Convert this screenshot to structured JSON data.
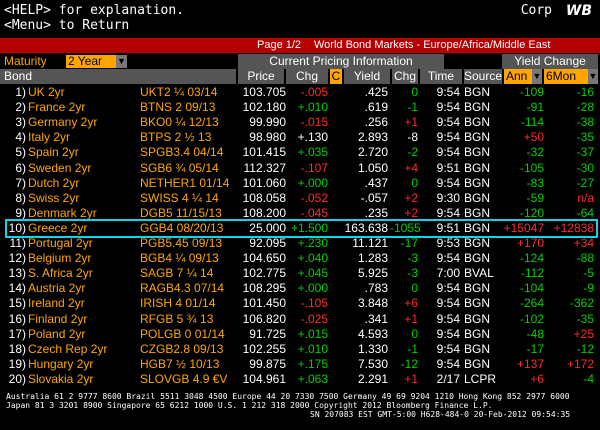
{
  "top": {
    "help_key": "<HELP>",
    "help_text": "for explanation.",
    "menu_line": "<Menu> to Return",
    "corp": "Corp",
    "logo": "WB"
  },
  "titlebar": {
    "page": "Page 1/2",
    "title": "World Bond Markets - Europe/Africa/Middle East"
  },
  "controls": {
    "maturity_label": "Maturity",
    "maturity_value": "2 Year",
    "current_pricing": "Current Pricing Information",
    "yield_change": "Yield Change"
  },
  "columns": {
    "bond": "Bond",
    "price": "Price",
    "chg": "Chg",
    "c": "C",
    "yield": "Yield",
    "ychg": "Chg",
    "time": "Time",
    "source": "Source",
    "ann": "Ann",
    "sixmon": "6Mon"
  },
  "rows": [
    {
      "num": "1)",
      "name": "UK 2yr",
      "ticker": "UKT2 ¼ 03/14",
      "price": "103.705",
      "chg": "-.005",
      "chg_dir": "dn",
      "yield": ".425",
      "ychg": "0",
      "ychg_dir": "up",
      "time": "9:54",
      "source": "BGN",
      "ann": "-109",
      "ann_dir": "up",
      "six": "-16",
      "six_dir": "up"
    },
    {
      "num": "2)",
      "name": "France 2yr",
      "ticker": "BTNS 2 09/13",
      "price": "102.180",
      "chg": "+.010",
      "chg_dir": "up",
      "yield": ".619",
      "ychg": "-1",
      "ychg_dir": "up",
      "time": "9:54",
      "source": "BGN",
      "ann": "-91",
      "ann_dir": "up",
      "six": "-28",
      "six_dir": "up"
    },
    {
      "num": "3)",
      "name": "Germany 2yr",
      "ticker": "BKO0 ¼ 12/13",
      "price": "99.990",
      "chg": "-.015",
      "chg_dir": "dn",
      "yield": ".256",
      "ychg": "+1",
      "ychg_dir": "dn",
      "time": "9:54",
      "source": "BGN",
      "ann": "-114",
      "ann_dir": "up",
      "six": "-38",
      "six_dir": "up"
    },
    {
      "num": "4)",
      "name": "Italy 2yr",
      "ticker": "BTPS 2 ½ 13",
      "price": "98.980",
      "chg": "+.130",
      "chg_dir": "wh",
      "yield": "2.893",
      "ychg": "-8",
      "ychg_dir": "wh",
      "time": "9:54",
      "source": "BGN",
      "ann": "+50",
      "ann_dir": "dn",
      "six": "-35",
      "six_dir": "up"
    },
    {
      "num": "5)",
      "name": "Spain 2yr",
      "ticker": "SPGB3.4 04/14",
      "price": "101.415",
      "chg": "+.035",
      "chg_dir": "up",
      "yield": "2.720",
      "ychg": "-2",
      "ychg_dir": "up",
      "time": "9:54",
      "source": "BGN",
      "ann": "-32",
      "ann_dir": "up",
      "six": "-37",
      "six_dir": "up"
    },
    {
      "num": "6)",
      "name": "Sweden 2yr",
      "ticker": "SGB6 ¾ 05/14",
      "price": "112.327",
      "chg": "-.107",
      "chg_dir": "dn",
      "yield": "1.050",
      "ychg": "+4",
      "ychg_dir": "dn",
      "time": "9:51",
      "source": "BGN",
      "ann": "-105",
      "ann_dir": "up",
      "six": "-30",
      "six_dir": "up"
    },
    {
      "num": "7)",
      "name": "Dutch 2yr",
      "ticker": "NETHER1 01/14",
      "price": "101.060",
      "chg": "+.000",
      "chg_dir": "up",
      "yield": ".437",
      "ychg": "0",
      "ychg_dir": "up",
      "time": "9:54",
      "source": "BGN",
      "ann": "-83",
      "ann_dir": "up",
      "six": "-27",
      "six_dir": "up"
    },
    {
      "num": "8)",
      "name": "Swiss 2yr",
      "ticker": "SWISS 4 ¼ 14",
      "price": "108.058",
      "chg": "-.052",
      "chg_dir": "dn",
      "yield": "-.057",
      "ychg": "+2",
      "ychg_dir": "dn",
      "time": "9:30",
      "source": "BGN",
      "ann": "-59",
      "ann_dir": "up",
      "six": "n/a",
      "six_dir": "dn"
    },
    {
      "num": "9)",
      "name": "Denmark 2yr",
      "ticker": "DGB5 11/15/13",
      "price": "108.200",
      "chg": "-.045",
      "chg_dir": "dn",
      "yield": ".235",
      "ychg": "+2",
      "ychg_dir": "dn",
      "time": "9:54",
      "source": "BGN",
      "ann": "-120",
      "ann_dir": "up",
      "six": "-64",
      "six_dir": "up"
    },
    {
      "num": "10)",
      "name": "Greece 2yr",
      "ticker": "GGB4 08/20/13",
      "price": "25.000",
      "chg": "+1.500",
      "chg_dir": "up",
      "yield": "163.638",
      "ychg": "-1055",
      "ychg_dir": "up",
      "time": "9:51",
      "source": "BGN",
      "ann": "+15047",
      "ann_dir": "dn",
      "six": "+12838",
      "six_dir": "dn"
    },
    {
      "num": "11)",
      "name": "Portugal 2yr",
      "ticker": "PGB5.45 09/13",
      "price": "92.095",
      "chg": "+.230",
      "chg_dir": "up",
      "yield": "11.121",
      "ychg": "-17",
      "ychg_dir": "up",
      "time": "9:53",
      "source": "BGN",
      "ann": "+170",
      "ann_dir": "dn",
      "six": "+34",
      "six_dir": "dn"
    },
    {
      "num": "12)",
      "name": "Belgium 2yr",
      "ticker": "BGB4 ¼ 09/13",
      "price": "104.650",
      "chg": "+.040",
      "chg_dir": "up",
      "yield": "1.283",
      "ychg": "-3",
      "ychg_dir": "up",
      "time": "9:54",
      "source": "BGN",
      "ann": "-124",
      "ann_dir": "up",
      "six": "-88",
      "six_dir": "up"
    },
    {
      "num": "13)",
      "name": "S. Africa 2yr",
      "ticker": "SAGB 7 ¼ 14",
      "price": "102.775",
      "chg": "+.045",
      "chg_dir": "up",
      "yield": "5.925",
      "ychg": "-3",
      "ychg_dir": "up",
      "time": "7:00",
      "source": "BVAL",
      "ann": "-112",
      "ann_dir": "up",
      "six": "-5",
      "six_dir": "up"
    },
    {
      "num": "14)",
      "name": "Austria 2yr",
      "ticker": "RAGB4.3 07/14",
      "price": "108.295",
      "chg": "+.000",
      "chg_dir": "up",
      "yield": ".783",
      "ychg": "0",
      "ychg_dir": "up",
      "time": "9:54",
      "source": "BGN",
      "ann": "-104",
      "ann_dir": "up",
      "six": "-9",
      "six_dir": "up"
    },
    {
      "num": "15)",
      "name": "Ireland 2yr",
      "ticker": "IRISH 4 01/14",
      "price": "101.450",
      "chg": "-.105",
      "chg_dir": "dn",
      "yield": "3.848",
      "ychg": "+6",
      "ychg_dir": "dn",
      "time": "9:54",
      "source": "BGN",
      "ann": "-264",
      "ann_dir": "up",
      "six": "-362",
      "six_dir": "up"
    },
    {
      "num": "16)",
      "name": "Finland 2yr",
      "ticker": "RFGB 5 ¾ 13",
      "price": "106.820",
      "chg": "-.025",
      "chg_dir": "dn",
      "yield": ".341",
      "ychg": "+1",
      "ychg_dir": "dn",
      "time": "9:54",
      "source": "BGN",
      "ann": "-102",
      "ann_dir": "up",
      "six": "-35",
      "six_dir": "up"
    },
    {
      "num": "17)",
      "name": "Poland 2yr",
      "ticker": "POLGB 0 01/14",
      "price": "91.725",
      "chg": "+.015",
      "chg_dir": "up",
      "yield": "4.593",
      "ychg": "0",
      "ychg_dir": "up",
      "time": "9:54",
      "source": "BGN",
      "ann": "-48",
      "ann_dir": "up",
      "six": "+25",
      "six_dir": "dn"
    },
    {
      "num": "18)",
      "name": "Czech Rep 2yr",
      "ticker": "CZGB2.8 09/13",
      "price": "102.255",
      "chg": "+.010",
      "chg_dir": "up",
      "yield": "1.330",
      "ychg": "-1",
      "ychg_dir": "up",
      "time": "9:54",
      "source": "BGN",
      "ann": "-17",
      "ann_dir": "up",
      "six": "-12",
      "six_dir": "up"
    },
    {
      "num": "19)",
      "name": "Hungary 2yr",
      "ticker": "HGB7 ½ 10/13",
      "price": "99.875",
      "chg": "+.175",
      "chg_dir": "up",
      "yield": "7.530",
      "ychg": "-12",
      "ychg_dir": "up",
      "time": "9:54",
      "source": "BGN",
      "ann": "+137",
      "ann_dir": "dn",
      "six": "+172",
      "six_dir": "dn"
    },
    {
      "num": "20)",
      "name": "Slovakia 2yr",
      "ticker": "SLOVGB 4.9 €V",
      "price": "104.961",
      "chg": "+.063",
      "chg_dir": "up",
      "yield": "2.291",
      "ychg": "+1",
      "ychg_dir": "dn",
      "time": "2/17",
      "source": "LCPR",
      "ann": "+6",
      "ann_dir": "dn",
      "six": "-4",
      "six_dir": "up"
    }
  ],
  "footer": {
    "line1": "Australia 61 2 9777 8600 Brazil 5511 3048 4500 Europe 44 20 7330 7500 Germany 49 69 9204 1210 Hong Kong 852 2977 6000",
    "line2": "Japan 81 3 3201 8900        Singapore 65 6212 1000        U.S. 1 212 318 2000          Copyright 2012 Bloomberg Finance L.P.",
    "line3": "SN 207083 EST  GMT-5:00 H628-484-0 20-Feb-2012 09:54:35"
  }
}
